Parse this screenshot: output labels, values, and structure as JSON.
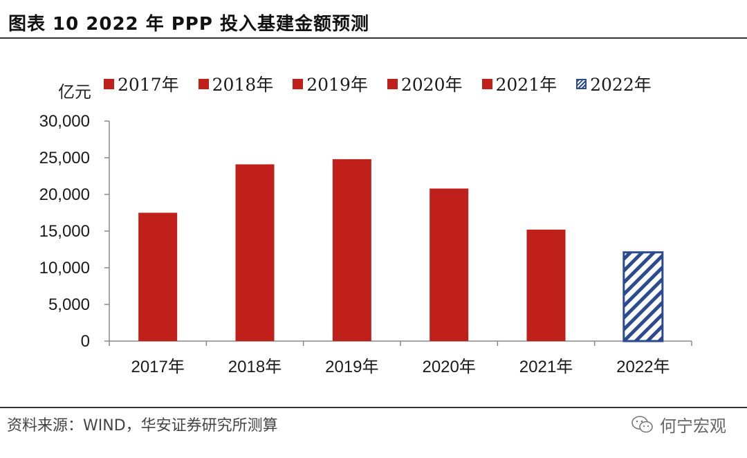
{
  "header": {
    "title": "图表 10 2022 年 PPP 投入基建金额预测"
  },
  "chart_data": {
    "type": "bar",
    "title": "图表 10 2022 年 PPP 投入基建金额预测",
    "ylabel": "亿元",
    "xlabel": "",
    "categories": [
      "2017年",
      "2018年",
      "2019年",
      "2020年",
      "2021年",
      "2022年"
    ],
    "values": [
      17500,
      24100,
      24800,
      20800,
      15200,
      12100
    ],
    "forecast_index": 5,
    "ylim": [
      0,
      30000
    ],
    "yticks": [
      0,
      5000,
      10000,
      15000,
      20000,
      25000,
      30000
    ],
    "ytick_labels": [
      "0",
      "5,000",
      "10,000",
      "15,000",
      "20,000",
      "25,000",
      "30,000"
    ],
    "legend": [
      "2017年",
      "2018年",
      "2019年",
      "2020年",
      "2021年",
      "2022年"
    ],
    "legend_position": "top",
    "grid": false,
    "colors": {
      "actual": "#c0201a",
      "forecast": "#2b4a8f"
    }
  },
  "footer": {
    "source": "资料来源：WIND，华安证券研究所测算",
    "watermark": "何宁宏观",
    "watermark_icon": "wechat-icon"
  }
}
